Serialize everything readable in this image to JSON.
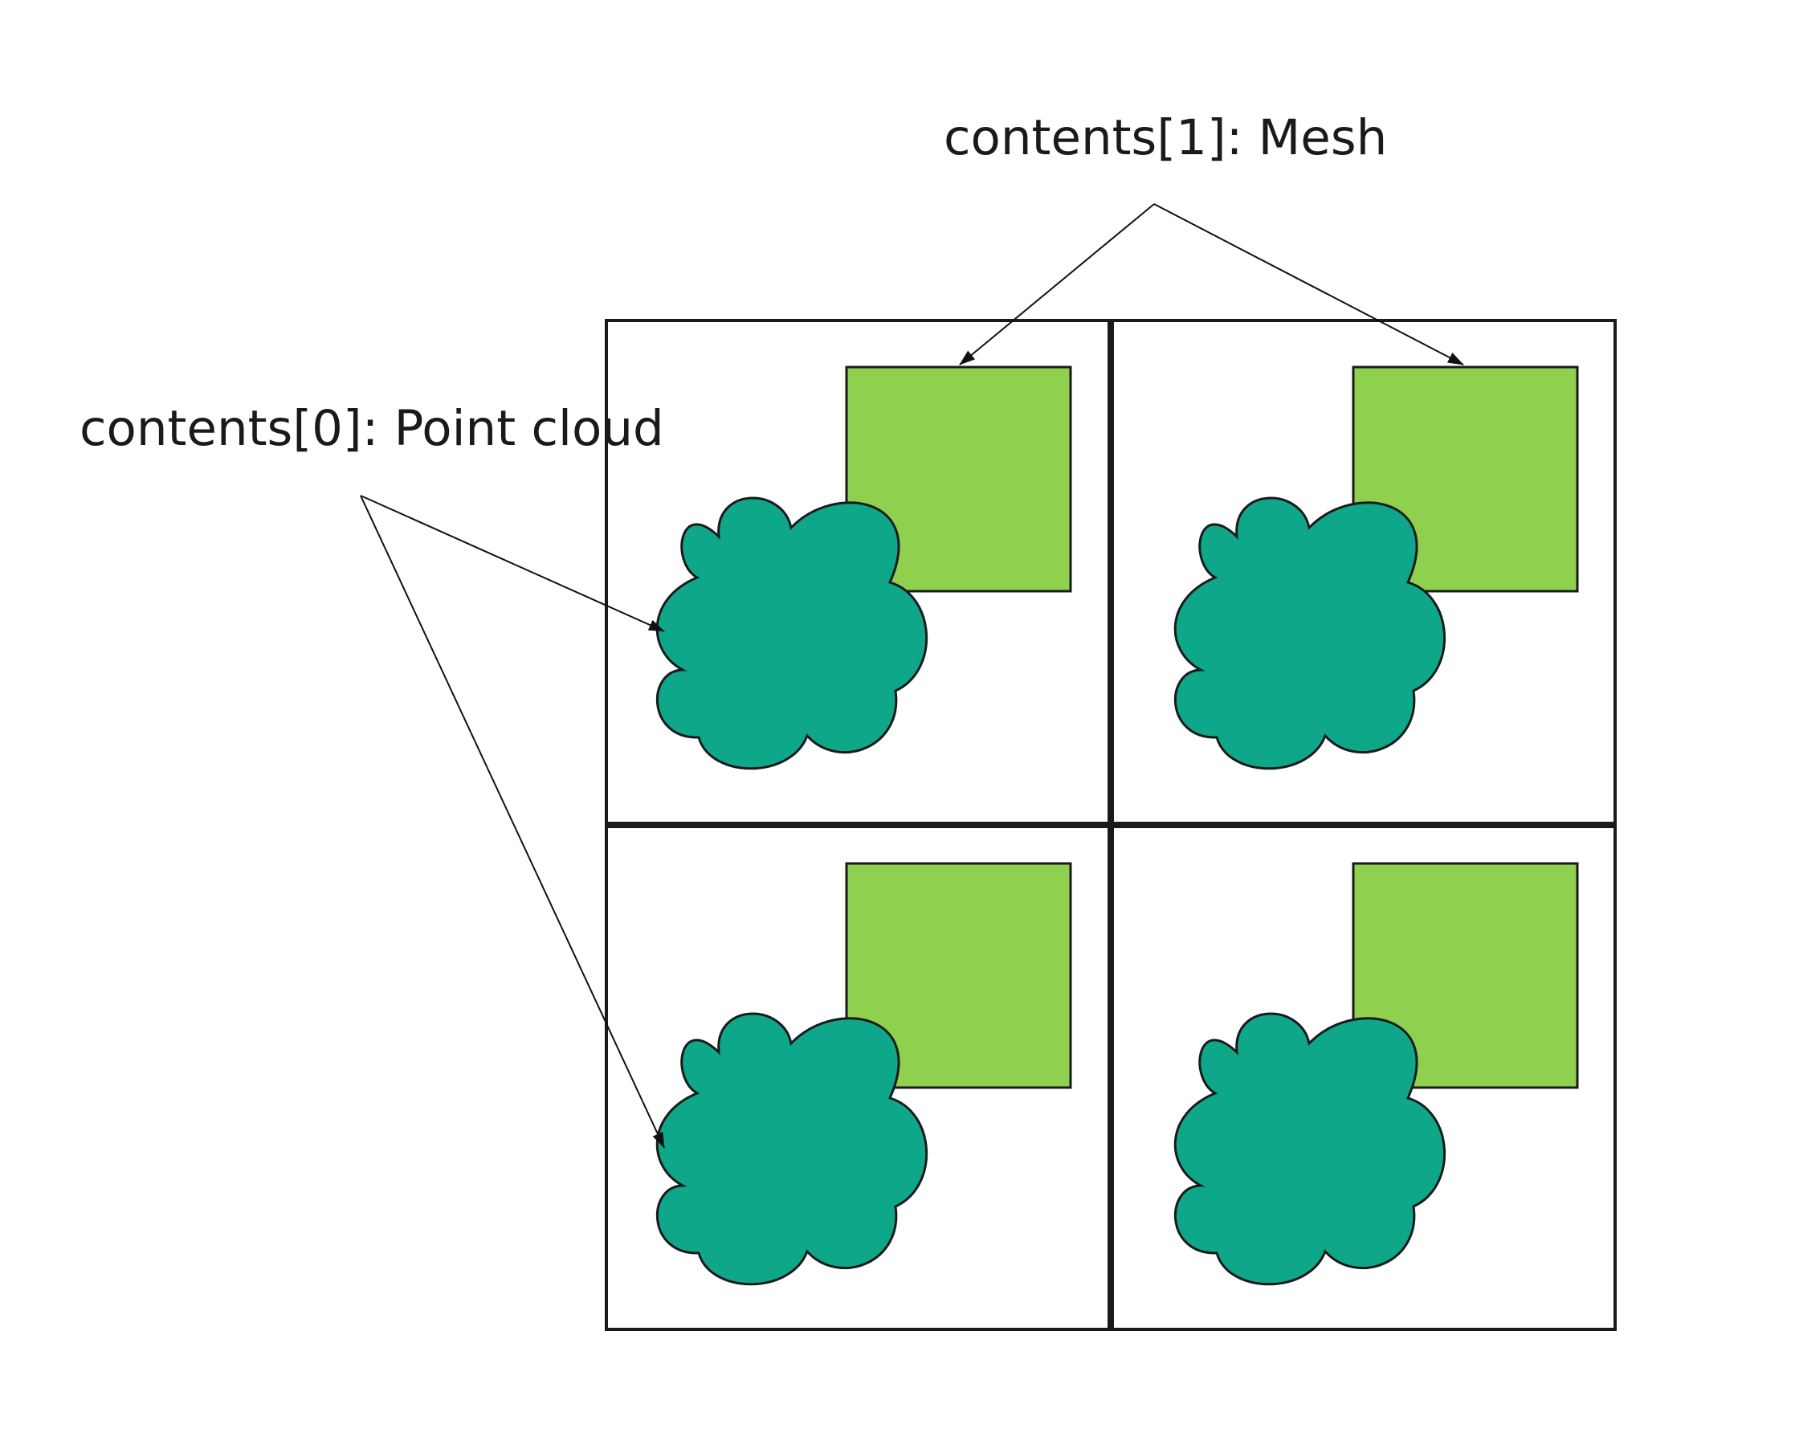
{
  "labels": {
    "mesh": "contents[1]: Mesh",
    "point_cloud": "contents[0]: Point cloud"
  },
  "tiles": [
    {
      "id": "top-left",
      "contents": [
        "point-cloud",
        "mesh"
      ]
    },
    {
      "id": "top-right",
      "contents": [
        "point-cloud",
        "mesh"
      ]
    },
    {
      "id": "bottom-left",
      "contents": [
        "point-cloud",
        "mesh"
      ]
    },
    {
      "id": "bottom-right",
      "contents": [
        "point-cloud",
        "mesh"
      ]
    }
  ],
  "colors": {
    "mesh": "#8fd14f",
    "point_cloud": "#0ea789",
    "outline": "#1a1a1a",
    "background": "#ffffff"
  },
  "icons": {
    "mesh": "square",
    "point_cloud": "cloud"
  }
}
